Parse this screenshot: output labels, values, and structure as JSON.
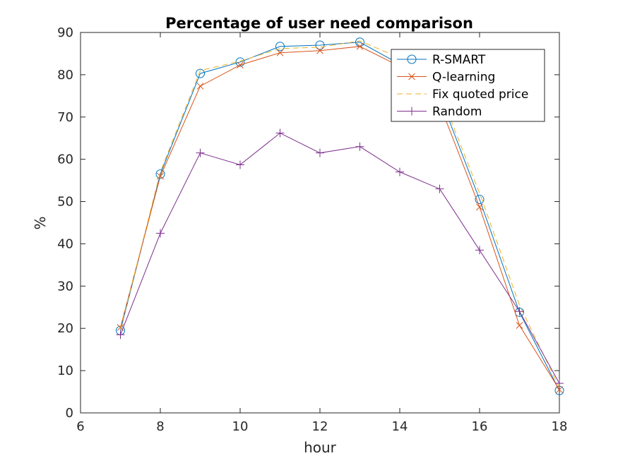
{
  "chart_data": {
    "type": "line",
    "title": "Percentage of user need comparison",
    "xlabel": "hour",
    "ylabel": "%",
    "xlim": [
      6,
      18
    ],
    "ylim": [
      0,
      90
    ],
    "xticks": [
      6,
      8,
      10,
      12,
      14,
      16,
      18
    ],
    "yticks": [
      0,
      10,
      20,
      30,
      40,
      50,
      60,
      70,
      80,
      90
    ],
    "grid": false,
    "legend_position": "top-right",
    "x": [
      7,
      8,
      9,
      10,
      11,
      12,
      13,
      14,
      15,
      16,
      17,
      18
    ],
    "series": [
      {
        "name": "R-SMART",
        "color": "#0072BD",
        "marker": "circle",
        "line": "solid",
        "values": [
          19.5,
          56.5,
          80.3,
          83.0,
          86.7,
          87.0,
          87.7,
          82.5,
          75.0,
          50.5,
          23.8,
          5.3
        ]
      },
      {
        "name": "Q-learning",
        "color": "#D95319",
        "marker": "x",
        "line": "solid",
        "values": [
          20.2,
          56.0,
          77.3,
          82.3,
          85.2,
          85.7,
          86.7,
          82.0,
          73.0,
          48.7,
          20.7,
          5.5
        ]
      },
      {
        "name": "Fix quoted price",
        "color": "#EDB120",
        "marker": "none",
        "line": "dashed",
        "values": [
          19.8,
          57.0,
          81.0,
          83.2,
          86.2,
          86.5,
          88.0,
          84.0,
          76.0,
          52.0,
          25.5,
          6.0
        ]
      },
      {
        "name": "Random",
        "color": "#7E2F8E",
        "marker": "plus",
        "line": "solid",
        "values": [
          18.5,
          42.5,
          61.5,
          58.7,
          66.2,
          61.5,
          63.0,
          57.0,
          53.0,
          38.5,
          24.0,
          7.0
        ]
      }
    ]
  }
}
